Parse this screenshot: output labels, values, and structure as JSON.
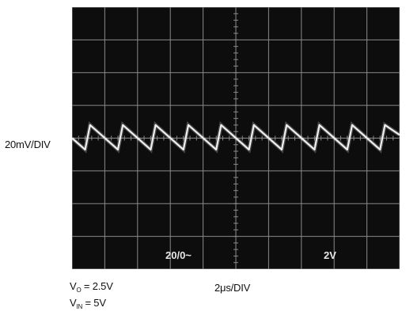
{
  "chart_data": {
    "type": "line",
    "title": "",
    "ylabel": "20mV/DIV",
    "xlabel": "2μs/DIV",
    "screen_labels": {
      "left": "20/0~",
      "right": "2V"
    },
    "divisions": {
      "x": 10,
      "y": 8
    },
    "grid": true,
    "background": "#0d0d0d",
    "grid_color": "#8a8a8a",
    "trace_color": "#eeeeee",
    "xlim": [
      0,
      20
    ],
    "ylim": [
      -80,
      80
    ],
    "waveform": {
      "shape": "sawtooth",
      "period_us": 2.0,
      "first_rise_us": 0.8,
      "peak_mV": 8,
      "trough_mV": -7,
      "x_unit": "μs",
      "y_unit": "mV"
    },
    "series": [
      {
        "x": [
          0.0,
          0.8,
          1.1,
          2.8,
          3.1,
          4.8,
          5.1,
          6.8,
          7.1,
          8.8,
          9.1,
          10.8,
          11.1,
          12.8,
          13.1,
          14.8,
          15.1,
          16.8,
          17.1,
          18.8,
          19.1,
          20.0
        ],
        "y": [
          0,
          -7,
          8,
          -7,
          8,
          -7,
          8,
          -7,
          8,
          -7,
          8,
          -7,
          8,
          -7,
          8,
          -7,
          8,
          -7,
          8,
          -7,
          8,
          2
        ]
      }
    ]
  },
  "conditions": {
    "vo": {
      "symbol": "V",
      "sub": "O",
      "value": " = 2.5V"
    },
    "vin": {
      "symbol": "V",
      "sub": "IN",
      "value": " = 5V"
    }
  }
}
